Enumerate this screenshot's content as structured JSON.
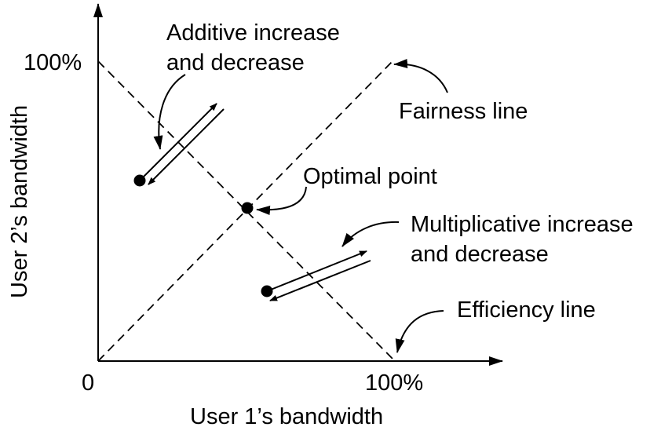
{
  "diagram": {
    "x_axis": {
      "label": "User 1’s bandwidth",
      "origin_label": "0",
      "max_label": "100%"
    },
    "y_axis": {
      "label": "User 2’s bandwidth",
      "max_label": "100%"
    },
    "annotations": {
      "fairness_line": "Fairness line",
      "efficiency_line": "Efficiency line",
      "optimal_point": "Optimal point",
      "additive_line1": "Additive increase",
      "additive_line2": "and decrease",
      "multiplicative_line1": "Multiplicative increase",
      "multiplicative_line2": "and decrease"
    },
    "colors": {
      "ink": "#000000",
      "background": "#ffffff"
    }
  }
}
